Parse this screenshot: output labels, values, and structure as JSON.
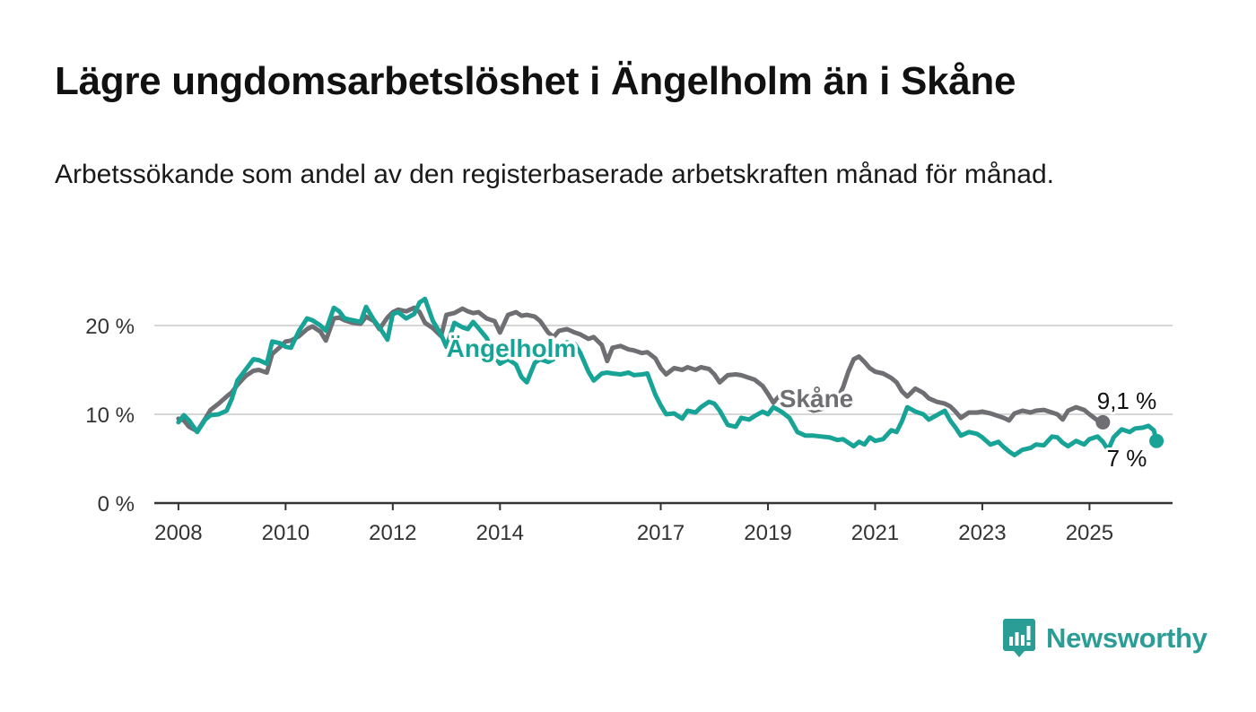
{
  "title": "Lägre ungdomsarbetslöshet i Ängelholm än i Skåne",
  "subtitle": "Arbetssökande som andel av den registerbaserade arbetskraften månad för månad.",
  "brand": {
    "name": "Newsworthy",
    "color": "#2a9d96",
    "icon": "bar-chart-speech-bubble-icon"
  },
  "chart_data": {
    "type": "line",
    "grid": true,
    "ylim": [
      0,
      20
    ],
    "xlim": [
      2007.55,
      2026.55
    ],
    "y_ticks": [
      {
        "value": 0,
        "label": "0 %"
      },
      {
        "value": 10,
        "label": "10 %"
      },
      {
        "value": 20,
        "label": "20 %"
      }
    ],
    "x_ticks": [
      {
        "value": 2008,
        "label": "2008"
      },
      {
        "value": 2010,
        "label": "2010"
      },
      {
        "value": 2012,
        "label": "2012"
      },
      {
        "value": 2014,
        "label": "2014"
      },
      {
        "value": 2017,
        "label": "2017"
      },
      {
        "value": 2019,
        "label": "2019"
      },
      {
        "value": 2021,
        "label": "2021"
      },
      {
        "value": 2023,
        "label": "2023"
      },
      {
        "value": 2025,
        "label": "2025"
      }
    ],
    "series": [
      {
        "name": "Skåne",
        "color": "#6e6e73",
        "end_label": "9,1 %",
        "points": [
          [
            2008.0,
            9.5
          ],
          [
            2008.1,
            9.3
          ],
          [
            2008.2,
            8.6
          ],
          [
            2008.35,
            8.1
          ],
          [
            2008.5,
            9.5
          ],
          [
            2008.6,
            10.5
          ],
          [
            2008.75,
            11.2
          ],
          [
            2008.9,
            12.0
          ],
          [
            2009.0,
            12.5
          ],
          [
            2009.1,
            13.3
          ],
          [
            2009.25,
            14.3
          ],
          [
            2009.4,
            14.9
          ],
          [
            2009.5,
            15.0
          ],
          [
            2009.65,
            14.7
          ],
          [
            2009.75,
            16.8
          ],
          [
            2009.9,
            17.6
          ],
          [
            2010.0,
            18.2
          ],
          [
            2010.1,
            18.3
          ],
          [
            2010.25,
            18.8
          ],
          [
            2010.4,
            19.6
          ],
          [
            2010.5,
            19.9
          ],
          [
            2010.65,
            19.3
          ],
          [
            2010.75,
            18.3
          ],
          [
            2010.9,
            20.8
          ],
          [
            2011.0,
            20.9
          ],
          [
            2011.1,
            20.6
          ],
          [
            2011.25,
            20.3
          ],
          [
            2011.4,
            20.2
          ],
          [
            2011.5,
            21.0
          ],
          [
            2011.65,
            20.5
          ],
          [
            2011.75,
            19.6
          ],
          [
            2011.9,
            20.9
          ],
          [
            2012.0,
            21.5
          ],
          [
            2012.1,
            21.8
          ],
          [
            2012.25,
            21.6
          ],
          [
            2012.4,
            22.0
          ],
          [
            2012.5,
            21.5
          ],
          [
            2012.6,
            20.3
          ],
          [
            2012.75,
            19.7
          ],
          [
            2012.9,
            18.8
          ],
          [
            2013.0,
            21.2
          ],
          [
            2013.15,
            21.4
          ],
          [
            2013.3,
            21.9
          ],
          [
            2013.4,
            21.6
          ],
          [
            2013.5,
            21.4
          ],
          [
            2013.6,
            21.5
          ],
          [
            2013.75,
            20.8
          ],
          [
            2013.9,
            20.5
          ],
          [
            2014.0,
            19.2
          ],
          [
            2014.15,
            21.2
          ],
          [
            2014.3,
            21.5
          ],
          [
            2014.4,
            21.1
          ],
          [
            2014.5,
            21.2
          ],
          [
            2014.65,
            21.0
          ],
          [
            2014.75,
            20.5
          ],
          [
            2014.9,
            19.2
          ],
          [
            2015.0,
            18.7
          ],
          [
            2015.1,
            19.4
          ],
          [
            2015.25,
            19.6
          ],
          [
            2015.4,
            19.2
          ],
          [
            2015.5,
            19.0
          ],
          [
            2015.65,
            18.5
          ],
          [
            2015.75,
            18.7
          ],
          [
            2015.9,
            17.8
          ],
          [
            2016.0,
            16.0
          ],
          [
            2016.1,
            17.5
          ],
          [
            2016.25,
            17.7
          ],
          [
            2016.4,
            17.3
          ],
          [
            2016.5,
            17.2
          ],
          [
            2016.65,
            16.9
          ],
          [
            2016.75,
            17.0
          ],
          [
            2016.9,
            16.3
          ],
          [
            2017.0,
            15.2
          ],
          [
            2017.1,
            14.5
          ],
          [
            2017.25,
            15.2
          ],
          [
            2017.4,
            15.0
          ],
          [
            2017.5,
            15.3
          ],
          [
            2017.65,
            15.0
          ],
          [
            2017.75,
            15.3
          ],
          [
            2017.9,
            15.1
          ],
          [
            2018.0,
            14.5
          ],
          [
            2018.1,
            13.6
          ],
          [
            2018.25,
            14.4
          ],
          [
            2018.4,
            14.5
          ],
          [
            2018.5,
            14.4
          ],
          [
            2018.65,
            14.1
          ],
          [
            2018.75,
            13.9
          ],
          [
            2018.9,
            13.2
          ],
          [
            2019.0,
            12.3
          ],
          [
            2019.1,
            11.3
          ],
          [
            2019.25,
            12.3
          ],
          [
            2019.4,
            12.5
          ],
          [
            2019.55,
            11.5
          ],
          [
            2019.7,
            10.8
          ],
          [
            2019.85,
            10.4
          ],
          [
            2020.0,
            10.6
          ],
          [
            2020.15,
            11.0
          ],
          [
            2020.3,
            11.8
          ],
          [
            2020.4,
            13.0
          ],
          [
            2020.5,
            14.8
          ],
          [
            2020.6,
            16.2
          ],
          [
            2020.7,
            16.5
          ],
          [
            2020.8,
            15.9
          ],
          [
            2020.9,
            15.2
          ],
          [
            2021.0,
            14.8
          ],
          [
            2021.15,
            14.6
          ],
          [
            2021.3,
            14.1
          ],
          [
            2021.4,
            13.6
          ],
          [
            2021.5,
            12.6
          ],
          [
            2021.6,
            12.0
          ],
          [
            2021.75,
            12.9
          ],
          [
            2021.9,
            12.4
          ],
          [
            2022.0,
            11.8
          ],
          [
            2022.15,
            11.4
          ],
          [
            2022.3,
            11.2
          ],
          [
            2022.4,
            10.9
          ],
          [
            2022.5,
            10.3
          ],
          [
            2022.6,
            9.6
          ],
          [
            2022.75,
            10.2
          ],
          [
            2022.9,
            10.2
          ],
          [
            2023.0,
            10.3
          ],
          [
            2023.15,
            10.1
          ],
          [
            2023.3,
            9.8
          ],
          [
            2023.4,
            9.6
          ],
          [
            2023.5,
            9.3
          ],
          [
            2023.6,
            10.1
          ],
          [
            2023.75,
            10.4
          ],
          [
            2023.9,
            10.2
          ],
          [
            2024.0,
            10.4
          ],
          [
            2024.15,
            10.5
          ],
          [
            2024.3,
            10.2
          ],
          [
            2024.4,
            10.0
          ],
          [
            2024.5,
            9.4
          ],
          [
            2024.6,
            10.4
          ],
          [
            2024.75,
            10.8
          ],
          [
            2024.9,
            10.5
          ],
          [
            2025.0,
            10.0
          ],
          [
            2025.15,
            9.3
          ],
          [
            2025.25,
            9.1
          ]
        ]
      },
      {
        "name": "Ängelholm",
        "color": "#18a397",
        "end_label": "7 %",
        "points": [
          [
            2008.0,
            9.1
          ],
          [
            2008.1,
            9.9
          ],
          [
            2008.2,
            9.3
          ],
          [
            2008.35,
            8.0
          ],
          [
            2008.5,
            9.4
          ],
          [
            2008.6,
            9.9
          ],
          [
            2008.75,
            10.0
          ],
          [
            2008.9,
            10.4
          ],
          [
            2009.0,
            11.8
          ],
          [
            2009.1,
            13.8
          ],
          [
            2009.25,
            15.0
          ],
          [
            2009.4,
            16.2
          ],
          [
            2009.5,
            16.1
          ],
          [
            2009.65,
            15.7
          ],
          [
            2009.75,
            18.2
          ],
          [
            2009.9,
            18.0
          ],
          [
            2010.0,
            17.6
          ],
          [
            2010.1,
            17.5
          ],
          [
            2010.25,
            19.4
          ],
          [
            2010.4,
            20.8
          ],
          [
            2010.5,
            20.6
          ],
          [
            2010.65,
            20.0
          ],
          [
            2010.75,
            19.4
          ],
          [
            2010.9,
            22.0
          ],
          [
            2011.0,
            21.6
          ],
          [
            2011.1,
            20.8
          ],
          [
            2011.25,
            20.6
          ],
          [
            2011.4,
            20.4
          ],
          [
            2011.5,
            22.1
          ],
          [
            2011.65,
            20.6
          ],
          [
            2011.75,
            19.8
          ],
          [
            2011.9,
            18.4
          ],
          [
            2012.0,
            21.3
          ],
          [
            2012.1,
            21.5
          ],
          [
            2012.25,
            20.8
          ],
          [
            2012.4,
            21.3
          ],
          [
            2012.5,
            22.6
          ],
          [
            2012.6,
            23.0
          ],
          [
            2012.75,
            20.5
          ],
          [
            2012.9,
            19.0
          ],
          [
            2013.0,
            17.6
          ],
          [
            2013.15,
            20.3
          ],
          [
            2013.3,
            19.8
          ],
          [
            2013.4,
            19.6
          ],
          [
            2013.5,
            20.4
          ],
          [
            2013.6,
            19.7
          ],
          [
            2013.75,
            18.6
          ],
          [
            2013.9,
            16.5
          ],
          [
            2014.0,
            15.7
          ],
          [
            2014.15,
            16.2
          ],
          [
            2014.3,
            15.6
          ],
          [
            2014.4,
            14.2
          ],
          [
            2014.5,
            13.6
          ],
          [
            2014.65,
            15.8
          ],
          [
            2014.75,
            16.2
          ],
          [
            2014.9,
            15.9
          ],
          [
            2015.0,
            16.2
          ],
          [
            2015.1,
            17.8
          ],
          [
            2015.25,
            18.1
          ],
          [
            2015.4,
            17.9
          ],
          [
            2015.5,
            16.9
          ],
          [
            2015.65,
            14.8
          ],
          [
            2015.75,
            13.8
          ],
          [
            2015.9,
            14.6
          ],
          [
            2016.0,
            14.7
          ],
          [
            2016.1,
            14.6
          ],
          [
            2016.25,
            14.5
          ],
          [
            2016.4,
            14.7
          ],
          [
            2016.5,
            14.4
          ],
          [
            2016.65,
            14.5
          ],
          [
            2016.75,
            14.6
          ],
          [
            2016.9,
            12.2
          ],
          [
            2017.0,
            11.0
          ],
          [
            2017.1,
            10.0
          ],
          [
            2017.25,
            10.1
          ],
          [
            2017.4,
            9.5
          ],
          [
            2017.5,
            10.4
          ],
          [
            2017.65,
            10.2
          ],
          [
            2017.75,
            10.8
          ],
          [
            2017.9,
            11.4
          ],
          [
            2018.0,
            11.2
          ],
          [
            2018.1,
            10.4
          ],
          [
            2018.25,
            8.8
          ],
          [
            2018.4,
            8.6
          ],
          [
            2018.5,
            9.6
          ],
          [
            2018.65,
            9.4
          ],
          [
            2018.75,
            9.8
          ],
          [
            2018.9,
            10.3
          ],
          [
            2019.0,
            10.0
          ],
          [
            2019.1,
            10.8
          ],
          [
            2019.25,
            10.3
          ],
          [
            2019.4,
            9.6
          ],
          [
            2019.55,
            8.0
          ],
          [
            2019.7,
            7.6
          ],
          [
            2019.85,
            7.6
          ],
          [
            2020.0,
            7.5
          ],
          [
            2020.15,
            7.4
          ],
          [
            2020.3,
            7.1
          ],
          [
            2020.4,
            7.2
          ],
          [
            2020.5,
            6.8
          ],
          [
            2020.6,
            6.4
          ],
          [
            2020.7,
            6.9
          ],
          [
            2020.8,
            6.6
          ],
          [
            2020.9,
            7.4
          ],
          [
            2021.0,
            7.0
          ],
          [
            2021.15,
            7.2
          ],
          [
            2021.3,
            8.2
          ],
          [
            2021.4,
            8.0
          ],
          [
            2021.5,
            9.2
          ],
          [
            2021.6,
            10.8
          ],
          [
            2021.75,
            10.3
          ],
          [
            2021.9,
            10.0
          ],
          [
            2022.0,
            9.4
          ],
          [
            2022.15,
            9.9
          ],
          [
            2022.3,
            10.4
          ],
          [
            2022.4,
            9.3
          ],
          [
            2022.5,
            8.5
          ],
          [
            2022.6,
            7.6
          ],
          [
            2022.75,
            8.0
          ],
          [
            2022.9,
            7.8
          ],
          [
            2023.0,
            7.4
          ],
          [
            2023.15,
            6.6
          ],
          [
            2023.3,
            6.9
          ],
          [
            2023.4,
            6.3
          ],
          [
            2023.5,
            5.8
          ],
          [
            2023.6,
            5.4
          ],
          [
            2023.75,
            6.0
          ],
          [
            2023.9,
            6.2
          ],
          [
            2024.0,
            6.6
          ],
          [
            2024.15,
            6.5
          ],
          [
            2024.3,
            7.5
          ],
          [
            2024.4,
            7.4
          ],
          [
            2024.5,
            6.8
          ],
          [
            2024.6,
            6.4
          ],
          [
            2024.75,
            7.0
          ],
          [
            2024.9,
            6.6
          ],
          [
            2025.0,
            7.2
          ],
          [
            2025.15,
            7.5
          ],
          [
            2025.25,
            6.9
          ],
          [
            2025.35,
            6.0
          ],
          [
            2025.45,
            7.4
          ],
          [
            2025.6,
            8.3
          ],
          [
            2025.75,
            8.0
          ],
          [
            2025.85,
            8.4
          ],
          [
            2026.0,
            8.5
          ],
          [
            2026.1,
            8.7
          ],
          [
            2026.2,
            8.2
          ],
          [
            2026.25,
            7.0
          ]
        ]
      }
    ]
  }
}
